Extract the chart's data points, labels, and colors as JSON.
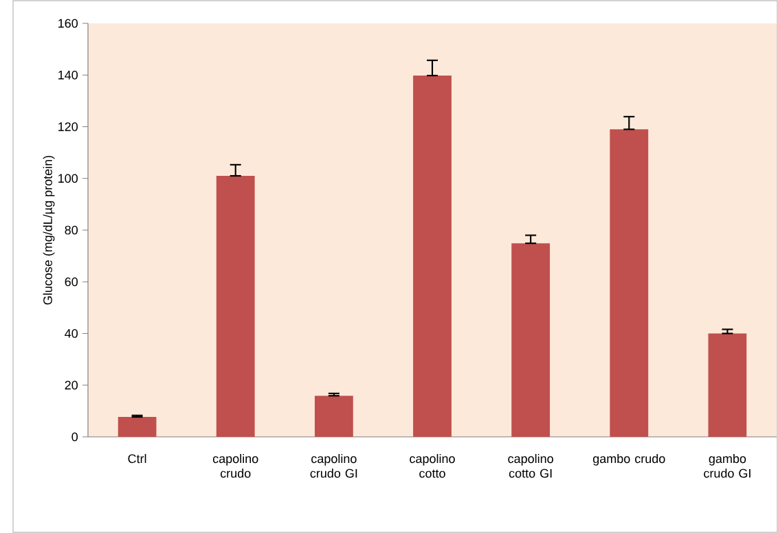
{
  "chart_data": {
    "type": "bar",
    "ylabel": "Glucose (mg/dL/µg protein)",
    "categories": [
      "Ctrl",
      "capolino crudo",
      "capolino crudo GI",
      "capolino cotto",
      "capolino cotto GI",
      "gambo crudo",
      "gambo crudo GI"
    ],
    "values": [
      7.7,
      101,
      15.9,
      139.8,
      74.9,
      119,
      40
    ],
    "errors": [
      [
        7.7,
        8.3
      ],
      [
        101,
        105.3
      ],
      [
        15.9,
        16.8
      ],
      [
        139.8,
        145.7
      ],
      [
        74.9,
        78
      ],
      [
        119,
        123.9
      ],
      [
        40,
        41.6
      ]
    ],
    "color": "#c0504d",
    "ylim": [
      0,
      160
    ],
    "yticks": [
      0,
      20,
      40,
      60,
      80,
      100,
      120,
      140,
      160
    ]
  }
}
